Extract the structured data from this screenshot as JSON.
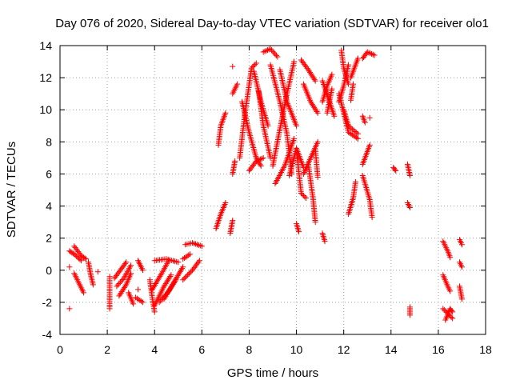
{
  "chart_data": {
    "type": "scatter",
    "title": "Day 076 of 2020, Sidereal Day-to-day VTEC variation (SDTVAR) for receiver olo1",
    "xlabel": "GPS time / hours",
    "ylabel": "SDTVAR / TECUs",
    "xlim": [
      0,
      18
    ],
    "ylim": [
      -4,
      14
    ],
    "xticks": [
      0,
      2,
      4,
      6,
      8,
      10,
      12,
      14,
      16,
      18
    ],
    "yticks": [
      -4,
      -2,
      0,
      2,
      4,
      6,
      8,
      10,
      12,
      14
    ],
    "grid": true,
    "marker": "+",
    "color": "#ff0000",
    "arcs": [
      {
        "points": [
          [
            0.4,
            1.2
          ],
          [
            0.6,
            1.0
          ],
          [
            0.9,
            0.6
          ]
        ]
      },
      {
        "points": [
          [
            0.6,
            1.5
          ],
          [
            0.9,
            0.9
          ],
          [
            1.1,
            0.7
          ]
        ]
      },
      {
        "points": [
          [
            0.6,
            -0.2
          ],
          [
            0.8,
            -0.8
          ],
          [
            1.0,
            -1.4
          ]
        ]
      },
      {
        "points": [
          [
            1.2,
            0.5
          ],
          [
            1.3,
            -0.3
          ],
          [
            1.4,
            -0.9
          ]
        ]
      },
      {
        "points": [
          [
            2.1,
            -0.4
          ],
          [
            2.1,
            -2.4
          ]
        ]
      },
      {
        "points": [
          [
            2.3,
            -0.5
          ],
          [
            2.6,
            0.1
          ],
          [
            2.8,
            0.5
          ]
        ]
      },
      {
        "points": [
          [
            2.4,
            -1.0
          ],
          [
            2.7,
            -0.5
          ],
          [
            3.0,
            0.3
          ]
        ]
      },
      {
        "points": [
          [
            2.5,
            -1.6
          ],
          [
            2.8,
            -0.9
          ],
          [
            3.0,
            -0.2
          ]
        ]
      },
      {
        "points": [
          [
            2.9,
            -1.4
          ],
          [
            3.1,
            -2.1
          ]
        ]
      },
      {
        "points": [
          [
            3.2,
            -1.7
          ],
          [
            3.5,
            -2.0
          ]
        ]
      },
      {
        "points": [
          [
            3.3,
            0.6
          ],
          [
            3.5,
            0.0
          ]
        ]
      },
      {
        "points": [
          [
            3.8,
            -0.6
          ],
          [
            3.9,
            -1.7
          ],
          [
            4.0,
            -2.6
          ]
        ]
      },
      {
        "points": [
          [
            3.9,
            -1.2
          ],
          [
            4.3,
            -0.2
          ],
          [
            4.6,
            0.6
          ]
        ]
      },
      {
        "points": [
          [
            4.0,
            -2.2
          ],
          [
            4.4,
            -1.0
          ],
          [
            4.7,
            -0.3
          ]
        ]
      },
      {
        "points": [
          [
            4.2,
            -2.0
          ],
          [
            4.6,
            -1.3
          ],
          [
            4.9,
            -0.6
          ]
        ]
      },
      {
        "points": [
          [
            4.0,
            0.6
          ],
          [
            4.5,
            0.7
          ],
          [
            5.0,
            0.5
          ]
        ]
      },
      {
        "points": [
          [
            4.4,
            -1.8
          ],
          [
            4.8,
            -0.8
          ],
          [
            5.2,
            0.2
          ]
        ]
      },
      {
        "points": [
          [
            5.2,
            -0.6
          ],
          [
            5.6,
            0.0
          ],
          [
            5.9,
            0.6
          ]
        ]
      },
      {
        "points": [
          [
            5.2,
            0.7
          ],
          [
            5.5,
            1.0
          ]
        ]
      },
      {
        "points": [
          [
            5.3,
            1.6
          ],
          [
            5.6,
            1.7
          ],
          [
            6.0,
            1.5
          ]
        ]
      },
      {
        "points": [
          [
            6.6,
            2.6
          ],
          [
            6.8,
            3.5
          ],
          [
            7.0,
            4.2
          ]
        ]
      },
      {
        "points": [
          [
            6.7,
            7.8
          ],
          [
            6.8,
            9.0
          ],
          [
            7.0,
            9.8
          ]
        ]
      },
      {
        "points": [
          [
            7.2,
            2.3
          ],
          [
            7.3,
            3.1
          ]
        ]
      },
      {
        "points": [
          [
            7.3,
            6.0
          ],
          [
            7.4,
            6.8
          ]
        ]
      },
      {
        "points": [
          [
            7.3,
            11.0
          ],
          [
            7.5,
            11.6
          ]
        ]
      },
      {
        "points": [
          [
            7.6,
            7.0
          ],
          [
            7.8,
            9.5
          ],
          [
            8.1,
            12.6
          ],
          [
            8.3,
            12.9
          ]
        ]
      },
      {
        "points": [
          [
            7.7,
            10.5
          ],
          [
            8.0,
            8.6
          ],
          [
            8.3,
            7.0
          ],
          [
            8.5,
            6.5
          ]
        ]
      },
      {
        "points": [
          [
            8.0,
            6.2
          ],
          [
            8.3,
            6.8
          ],
          [
            8.6,
            7.0
          ]
        ]
      },
      {
        "points": [
          [
            8.2,
            12.4
          ],
          [
            8.5,
            10.5
          ],
          [
            8.8,
            9.0
          ]
        ]
      },
      {
        "points": [
          [
            8.4,
            11.2
          ],
          [
            8.6,
            9.0
          ],
          [
            8.9,
            7.0
          ]
        ]
      },
      {
        "points": [
          [
            8.6,
            13.6
          ],
          [
            8.9,
            13.8
          ],
          [
            9.2,
            13.3
          ]
        ]
      },
      {
        "points": [
          [
            8.9,
            12.8
          ],
          [
            9.3,
            10.5
          ],
          [
            9.6,
            8.5
          ],
          [
            9.8,
            6.0
          ]
        ]
      },
      {
        "points": [
          [
            9.0,
            6.5
          ],
          [
            9.3,
            8.8
          ],
          [
            9.6,
            11.0
          ],
          [
            9.9,
            13.0
          ]
        ]
      },
      {
        "points": [
          [
            9.1,
            5.4
          ],
          [
            9.5,
            6.5
          ],
          [
            9.9,
            8.2
          ]
        ]
      },
      {
        "points": [
          [
            9.3,
            12.5
          ],
          [
            9.6,
            10.5
          ],
          [
            10.0,
            9.0
          ]
        ]
      },
      {
        "points": [
          [
            9.7,
            5.9
          ],
          [
            10.0,
            7.6
          ],
          [
            10.3,
            6.4
          ]
        ]
      },
      {
        "points": [
          [
            10.0,
            7.5
          ],
          [
            10.2,
            4.8
          ],
          [
            10.4,
            4.5
          ]
        ]
      },
      {
        "points": [
          [
            10.0,
            2.9
          ],
          [
            10.1,
            2.4
          ]
        ]
      },
      {
        "points": [
          [
            10.2,
            13.1
          ],
          [
            10.5,
            12.5
          ],
          [
            10.8,
            11.8
          ]
        ]
      },
      {
        "points": [
          [
            10.3,
            11.6
          ],
          [
            10.6,
            10.5
          ],
          [
            10.9,
            9.8
          ]
        ]
      },
      {
        "points": [
          [
            10.3,
            6.0
          ],
          [
            10.6,
            7.0
          ],
          [
            10.9,
            8.0
          ]
        ]
      },
      {
        "points": [
          [
            10.5,
            6.6
          ],
          [
            10.7,
            4.5
          ],
          [
            10.8,
            3.0
          ]
        ]
      },
      {
        "points": [
          [
            10.9,
            5.8
          ],
          [
            10.8,
            7.5
          ]
        ]
      },
      {
        "points": [
          [
            11.1,
            2.3
          ],
          [
            11.2,
            1.8
          ]
        ]
      },
      {
        "points": [
          [
            11.1,
            10.5
          ],
          [
            11.3,
            11.5
          ],
          [
            11.5,
            12.2
          ]
        ]
      },
      {
        "points": [
          [
            11.1,
            11.8
          ],
          [
            11.4,
            10.5
          ],
          [
            11.6,
            9.6
          ]
        ]
      },
      {
        "points": [
          [
            11.3,
            9.8
          ],
          [
            11.5,
            11.3
          ]
        ]
      },
      {
        "points": [
          [
            11.8,
            10.5
          ],
          [
            12.0,
            11.5
          ],
          [
            12.2,
            12.8
          ]
        ]
      },
      {
        "points": [
          [
            11.8,
            11.0
          ],
          [
            12.0,
            9.8
          ],
          [
            12.2,
            8.6
          ],
          [
            12.6,
            8.2
          ]
        ]
      },
      {
        "points": [
          [
            11.9,
            13.7
          ],
          [
            12.0,
            12.6
          ],
          [
            12.2,
            11.6
          ]
        ]
      },
      {
        "points": [
          [
            12.0,
            10.0
          ],
          [
            12.2,
            9.0
          ],
          [
            12.6,
            8.5
          ]
        ]
      },
      {
        "points": [
          [
            12.2,
            3.5
          ],
          [
            12.4,
            4.5
          ],
          [
            12.5,
            5.5
          ]
        ]
      },
      {
        "points": [
          [
            12.3,
            12.0
          ],
          [
            12.5,
            12.8
          ],
          [
            12.6,
            13.2
          ]
        ]
      },
      {
        "points": [
          [
            12.3,
            10.6
          ],
          [
            12.4,
            11.6
          ]
        ]
      },
      {
        "points": [
          [
            12.8,
            13.2
          ],
          [
            13.0,
            13.6
          ],
          [
            13.3,
            13.4
          ]
        ]
      },
      {
        "points": [
          [
            12.8,
            5.9
          ],
          [
            13.1,
            4.4
          ],
          [
            13.2,
            3.3
          ]
        ]
      },
      {
        "points": [
          [
            12.8,
            6.6
          ],
          [
            13.1,
            7.8
          ]
        ]
      },
      {
        "points": [
          [
            12.8,
            9.6
          ],
          [
            12.9,
            9.2
          ]
        ]
      },
      {
        "points": [
          [
            14.1,
            6.4
          ],
          [
            14.2,
            6.2
          ]
        ]
      },
      {
        "points": [
          [
            14.7,
            6.6
          ],
          [
            14.8,
            5.9
          ]
        ]
      },
      {
        "points": [
          [
            14.7,
            4.2
          ],
          [
            14.8,
            3.9
          ]
        ]
      },
      {
        "points": [
          [
            14.8,
            -2.3
          ],
          [
            14.8,
            -2.8
          ]
        ]
      },
      {
        "points": [
          [
            16.2,
            1.8
          ],
          [
            16.4,
            1.2
          ],
          [
            16.5,
            0.8
          ]
        ]
      },
      {
        "points": [
          [
            16.2,
            -0.3
          ],
          [
            16.4,
            -1.0
          ],
          [
            16.5,
            -1.3
          ]
        ]
      },
      {
        "points": [
          [
            16.2,
            -2.4
          ],
          [
            16.4,
            -2.7
          ],
          [
            16.6,
            -3.0
          ]
        ]
      },
      {
        "points": [
          [
            16.3,
            -3.1
          ],
          [
            16.5,
            -2.4
          ],
          [
            16.6,
            -2.6
          ]
        ]
      },
      {
        "points": [
          [
            16.9,
            1.9
          ],
          [
            17.0,
            1.6
          ]
        ]
      },
      {
        "points": [
          [
            16.9,
            0.5
          ],
          [
            17.0,
            0.2
          ]
        ]
      },
      {
        "points": [
          [
            16.9,
            -1.0
          ],
          [
            17.0,
            -1.8
          ]
        ]
      }
    ],
    "isolated_points": [
      [
        0.4,
        -2.4
      ],
      [
        0.4,
        0.2
      ],
      [
        3.3,
        -1.2
      ],
      [
        1.6,
        -0.1
      ],
      [
        7.3,
        12.7
      ],
      [
        13.1,
        9.5
      ]
    ]
  }
}
